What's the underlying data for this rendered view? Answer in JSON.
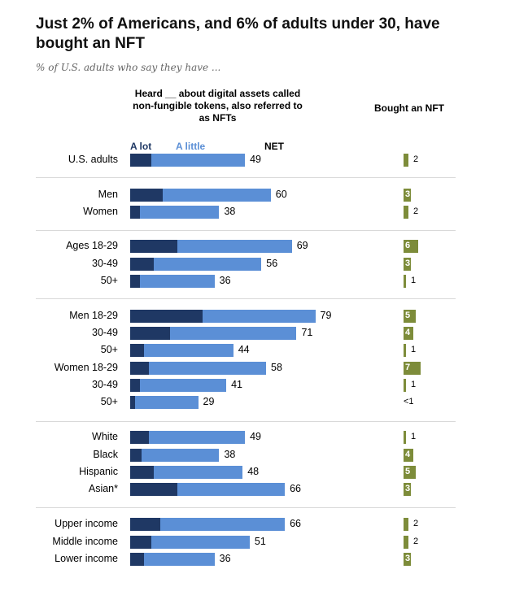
{
  "title": "Just 2% of Americans, and 6% of adults under 30, have bought an NFT",
  "subtitle": "% of U.S. adults who say they have ...",
  "header_heard": "Heard __ about digital assets called non-fungible tokens, also referred to as NFTs",
  "header_bought": "Bought an NFT",
  "legend": {
    "a_lot": "A lot",
    "a_little": "A little",
    "net": "NET"
  },
  "colors": {
    "a_lot": "#1f3864",
    "a_little": "#5b8fd6",
    "bought": "#7d8c3a"
  },
  "chart_data": {
    "type": "bar",
    "stacked": true,
    "series": [
      {
        "name": "A lot",
        "values": [
          9,
          14,
          4,
          20,
          10,
          4,
          31,
          17,
          6,
          8,
          4,
          2,
          8,
          5,
          10,
          20,
          13,
          9,
          6
        ]
      },
      {
        "name": "A little",
        "values": [
          40,
          46,
          34,
          49,
          46,
          32,
          48,
          54,
          38,
          50,
          37,
          27,
          41,
          33,
          38,
          46,
          53,
          42,
          30
        ]
      },
      {
        "name": "NET",
        "values": [
          49,
          60,
          38,
          69,
          56,
          36,
          79,
          71,
          44,
          58,
          41,
          29,
          49,
          38,
          48,
          66,
          66,
          51,
          36
        ]
      },
      {
        "name": "Bought an NFT",
        "values": [
          2,
          3,
          2,
          6,
          3,
          1,
          5,
          4,
          1,
          7,
          1,
          "<1",
          1,
          4,
          5,
          3,
          2,
          2,
          3
        ]
      }
    ],
    "categories": [
      "U.S. adults",
      "Men",
      "Women",
      "Ages 18-29",
      "30-49",
      "50+",
      "Men 18-29",
      "30-49",
      "50+",
      "Women 18-29",
      "30-49",
      "50+",
      "White",
      "Black",
      "Hispanic",
      "Asian*",
      "Upper income",
      "Middle income",
      "Lower income"
    ],
    "groups": [
      [
        0
      ],
      [
        1,
        2
      ],
      [
        3,
        4,
        5
      ],
      [
        6,
        7,
        8,
        9,
        10,
        11
      ],
      [
        12,
        13,
        14,
        15
      ],
      [
        16,
        17,
        18
      ]
    ],
    "xlim": [
      0,
      100
    ]
  }
}
